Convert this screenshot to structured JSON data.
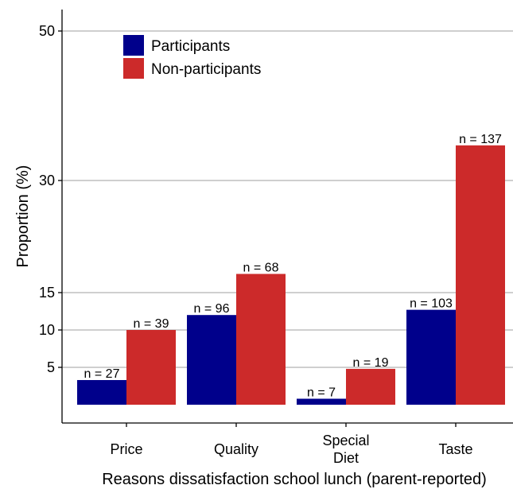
{
  "chart_data": {
    "type": "bar",
    "categories": [
      [
        "Price"
      ],
      [
        "Quality"
      ],
      [
        "Special",
        "Diet"
      ],
      [
        "Taste"
      ]
    ],
    "series": [
      {
        "name": "Participants",
        "color": "#00008B",
        "values": [
          3.3,
          12,
          0.8,
          12.7
        ],
        "labels": [
          "n = 27",
          "n = 96",
          "n = 7",
          "n = 103"
        ]
      },
      {
        "name": "Non-participants",
        "color": "#CC2A2A",
        "values": [
          10,
          17.5,
          4.8,
          34.7
        ],
        "labels": [
          "n = 39",
          "n = 68",
          "n = 19",
          "n = 137"
        ]
      }
    ],
    "xlabel": "Reasons dissatisfaction school lunch (parent-reported)",
    "ylabel": "Proportion (%)",
    "ylim": [
      -3,
      52
    ],
    "yticks": [
      5,
      10,
      15,
      30,
      50
    ],
    "grid": true,
    "legend_position": "top-left"
  }
}
